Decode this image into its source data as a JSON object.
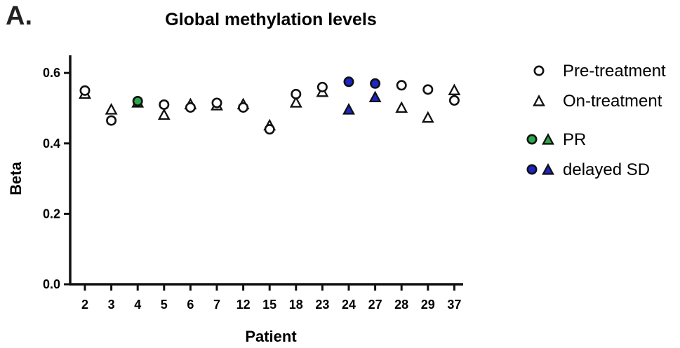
{
  "panel_label": "A.",
  "colors": {
    "axis": "#111111",
    "pr": "#2aa84a",
    "delayed_sd": "#1f24c8",
    "hollow": "#ffffff"
  },
  "chart_data": {
    "type": "scatter",
    "title": "Global methylation levels",
    "xlabel": "Patient",
    "ylabel": "Beta",
    "ylim": [
      0,
      0.65
    ],
    "yticks": [
      0.0,
      0.2,
      0.4,
      0.6
    ],
    "ytick_labels": [
      "0.0",
      "0.2",
      "0.4",
      "0.6"
    ],
    "categories": [
      "2",
      "3",
      "4",
      "5",
      "6",
      "7",
      "12",
      "15",
      "18",
      "23",
      "24",
      "27",
      "28",
      "29",
      "37"
    ],
    "series": [
      {
        "name": "Pre-treatment",
        "marker": "circle",
        "values": [
          0.55,
          0.465,
          0.52,
          0.51,
          0.502,
          0.515,
          0.502,
          0.44,
          0.54,
          0.56,
          0.575,
          0.57,
          0.565,
          0.553,
          0.522
        ]
      },
      {
        "name": "On-treatment",
        "marker": "triangle",
        "values": [
          0.54,
          0.495,
          0.515,
          0.48,
          0.51,
          0.507,
          0.51,
          0.45,
          0.515,
          0.545,
          0.495,
          0.53,
          0.5,
          0.472,
          0.55
        ]
      }
    ],
    "groups": [
      {
        "name": "PR",
        "color_key": "pr",
        "patients": [
          "4"
        ]
      },
      {
        "name": "delayed  SD",
        "color_key": "delayed_sd",
        "patients": [
          "24",
          "27"
        ]
      }
    ],
    "legend": {
      "placement": "right",
      "entries": [
        "Pre-treatment",
        "On-treatment",
        "PR",
        "delayed  SD"
      ]
    },
    "grid": false
  }
}
